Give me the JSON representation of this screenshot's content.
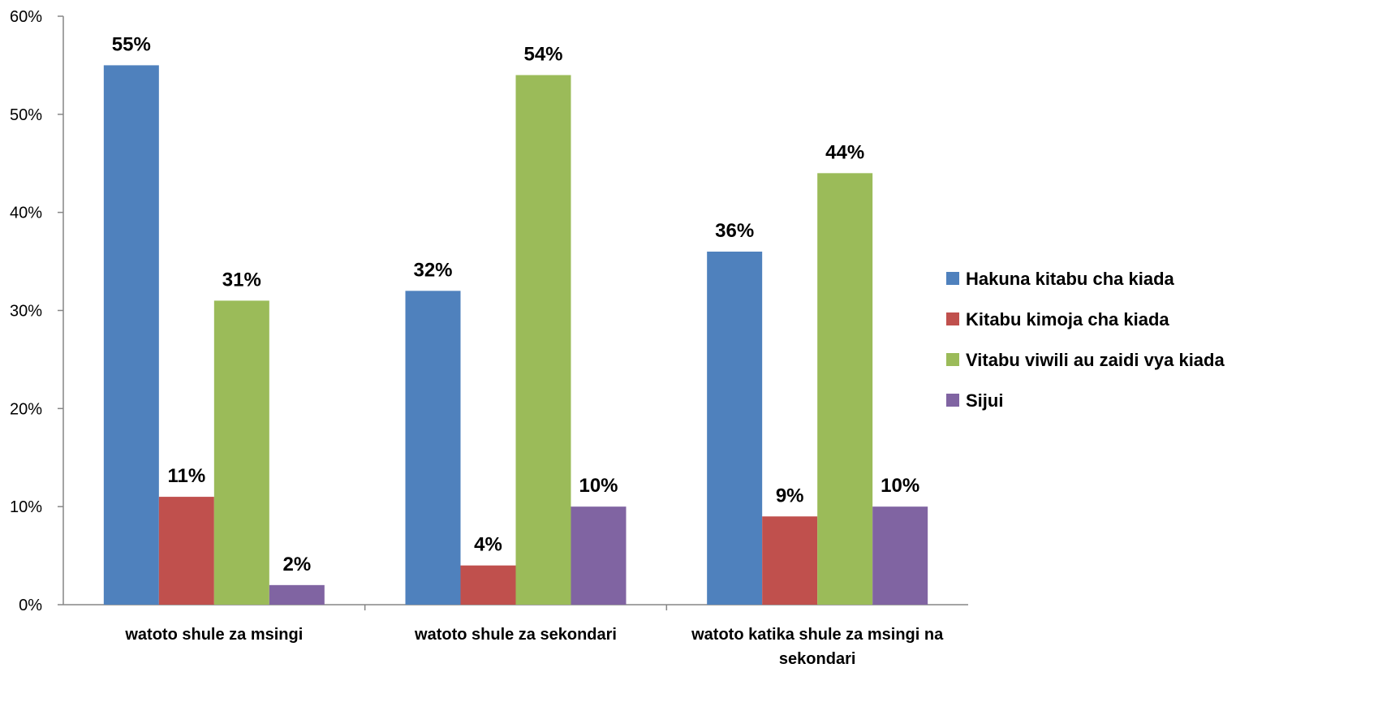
{
  "chart_data": {
    "type": "bar",
    "categories": [
      [
        "watoto shule za msingi"
      ],
      [
        "watoto shule za sekondari"
      ],
      [
        "watoto katika shule za msingi na",
        "sekondari"
      ]
    ],
    "series": [
      {
        "name": "Hakuna kitabu cha kiada",
        "values": [
          55,
          32,
          36
        ],
        "labels": [
          "55%",
          "32%",
          "36%"
        ],
        "color": "#4F81BD"
      },
      {
        "name": "Kitabu kimoja cha kiada",
        "values": [
          11,
          4,
          9
        ],
        "labels": [
          "11%",
          "4%",
          "9%"
        ],
        "color": "#C0504D"
      },
      {
        "name": "Vitabu viwili au zaidi vya kiada",
        "values": [
          31,
          54,
          44
        ],
        "labels": [
          "31%",
          "54%",
          "44%"
        ],
        "color": "#9BBB59"
      },
      {
        "name": "Sijui",
        "values": [
          2,
          10,
          10
        ],
        "labels": [
          "2%",
          "10%",
          "10%"
        ],
        "color": "#8064A2"
      }
    ],
    "yticks": [
      "0%",
      "10%",
      "20%",
      "30%",
      "40%",
      "50%",
      "60%"
    ],
    "ylim": [
      0,
      60
    ],
    "grid": false,
    "legend_position": "right"
  }
}
